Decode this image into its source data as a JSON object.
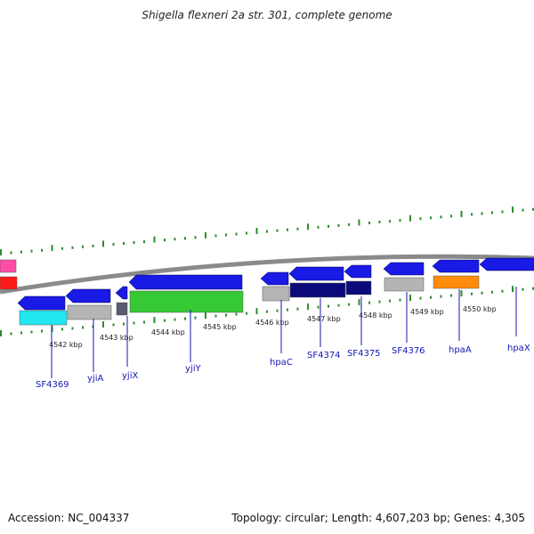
{
  "header": {
    "title": "Shigella flexneri 2a str. 301, complete genome"
  },
  "footer": {
    "accession": "Accession: NC_004337",
    "summary": "Topology: circular; Length: 4,607,203 bp; Genes: 4,305"
  },
  "colors": {
    "backbone": "#8a8a8a",
    "tick": "#2e8b2e",
    "label": "#1414b4",
    "cds_forward": "#1a1ae6",
    "cds_reverse": "#1a1ae6",
    "pink": "#ff4da6",
    "red": "#ff1a1a",
    "cyan": "#22e6f0",
    "gray": "#b4b4b4",
    "darkgray": "#5a5a6e",
    "green": "#36c936",
    "navy": "#0a0a7a",
    "orange": "#ff8c0a"
  },
  "kbp_labels": [
    "4542 kbp",
    "4543 kbp",
    "4544 kbp",
    "4545 kbp",
    "4546 kbp",
    "4547 kbp",
    "4548 kbp",
    "4549 kbp",
    "4550 kbp"
  ],
  "genes": [
    "SF4369",
    "yjiA",
    "yjiX",
    "yjiY",
    "hpaC",
    "SF4374",
    "SF4375",
    "SF4376",
    "hpaA",
    "hpaX"
  ]
}
